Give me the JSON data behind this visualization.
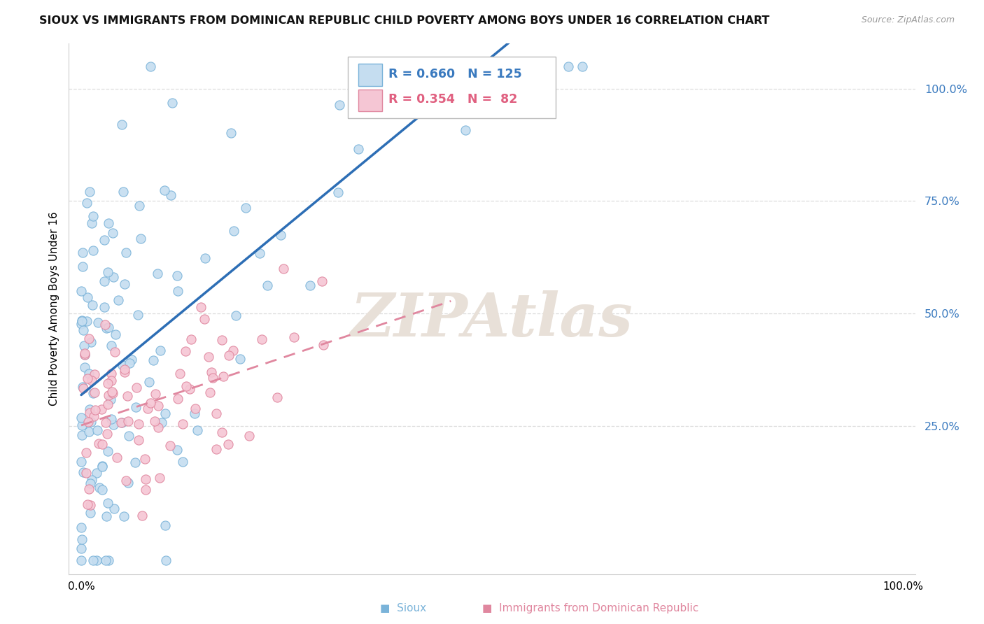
{
  "title": "SIOUX VS IMMIGRANTS FROM DOMINICAN REPUBLIC CHILD POVERTY AMONG BOYS UNDER 16 CORRELATION CHART",
  "source": "Source: ZipAtlas.com",
  "ylabel": "Child Poverty Among Boys Under 16",
  "ytick_labels": [
    "25.0%",
    "50.0%",
    "75.0%",
    "100.0%"
  ],
  "ytick_vals": [
    0.25,
    0.5,
    0.75,
    1.0
  ],
  "series1": {
    "name": "Sioux",
    "R": 0.66,
    "N": 125,
    "color": "#c5ddf0",
    "edge_color": "#7ab3d9",
    "line_color": "#2d6eb5"
  },
  "series2": {
    "name": "Immigrants from Dominican Republic",
    "R": 0.354,
    "N": 82,
    "color": "#f5c6d4",
    "edge_color": "#e0879f",
    "line_color": "#e0879f"
  },
  "watermark": "ZIPAtlas",
  "watermark_color": "#e8e0d8",
  "background_color": "#ffffff",
  "grid_color": "#dddddd",
  "legend_R1": "R = 0.660",
  "legend_N1": "N = 125",
  "legend_R2": "R = 0.354",
  "legend_N2": "N =  82",
  "label_color": "#3a7abf",
  "bottom_legend1": "Sioux",
  "bottom_legend2": "Immigrants from Dominican Republic"
}
